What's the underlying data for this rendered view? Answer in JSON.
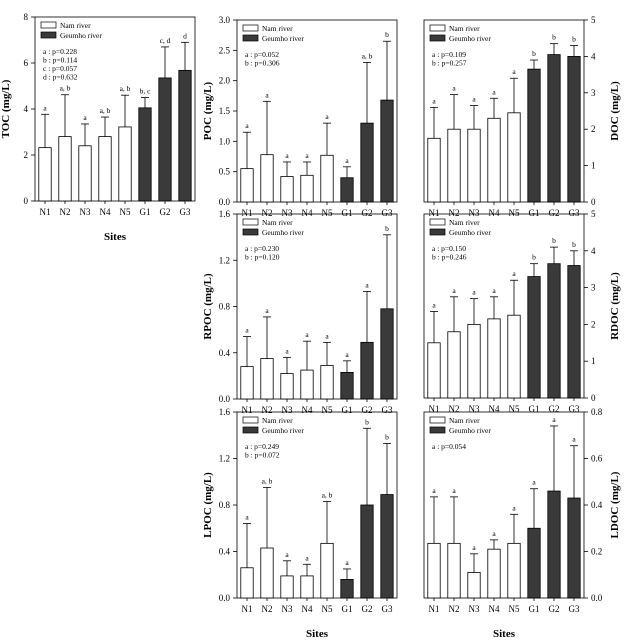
{
  "colors": {
    "nam": "#ffffff",
    "geumho": "#3a3a3a",
    "stroke": "#000000"
  },
  "chart_data": [
    {
      "id": "toc",
      "type": "bar",
      "ylabel": "TOC (mg/L)",
      "xlabel": "Sites",
      "axis_side": "left",
      "ylim": [
        0,
        8
      ],
      "yticks": [
        0,
        2,
        4,
        6,
        8
      ],
      "categories": [
        "N1",
        "N2",
        "N3",
        "N4",
        "N5",
        "G1",
        "G2",
        "G3"
      ],
      "legend": [
        "Nam river",
        "Geumho river"
      ],
      "series": [
        {
          "values": [
            2.32,
            2.8,
            2.4,
            2.8,
            3.22,
            4.05,
            5.35,
            5.68
          ],
          "errors": [
            1.45,
            1.82,
            0.95,
            0.85,
            1.38,
            0.45,
            1.35,
            1.22
          ]
        }
      ],
      "letters": [
        "a",
        "a, b",
        "a",
        "a, b",
        "a, b",
        "b, c",
        "c, d",
        "d"
      ],
      "stats": [
        "a : p=0.228",
        "b : p=0.114",
        "c : p=0.057",
        "d : p=0.632"
      ]
    },
    {
      "id": "poc",
      "type": "bar",
      "ylabel": "POC (mg/L)",
      "xlabel": "",
      "axis_side": "left",
      "ylim": [
        0,
        3.0
      ],
      "yticks": [
        "0.0",
        "0.5",
        "1.0",
        "1.5",
        "2.0",
        "2.5",
        "3.0"
      ],
      "categories": [
        "N1",
        "N2",
        "N3",
        "N4",
        "N5",
        "G1",
        "G2",
        "G3"
      ],
      "legend": [
        "Nam river",
        "Geumho river"
      ],
      "series": [
        {
          "values": [
            0.55,
            0.78,
            0.42,
            0.44,
            0.77,
            0.4,
            1.3,
            1.68
          ],
          "errors": [
            0.6,
            0.88,
            0.24,
            0.22,
            0.53,
            0.18,
            1.0,
            0.97
          ]
        }
      ],
      "letters": [
        "a",
        "a",
        "a",
        "a",
        "a",
        "a",
        "a, b",
        "b"
      ],
      "stats": [
        "a : p=0.052",
        "b : p=0.306"
      ]
    },
    {
      "id": "doc",
      "type": "bar",
      "ylabel": "DOC (mg/L)",
      "xlabel": "",
      "axis_side": "right",
      "ylim": [
        0,
        5
      ],
      "yticks": [
        0,
        1,
        2,
        3,
        4,
        5
      ],
      "categories": [
        "N1",
        "N2",
        "N3",
        "N4",
        "N5",
        "G1",
        "G2",
        "G3"
      ],
      "legend": [
        "Nam river",
        "Geumho river"
      ],
      "series": [
        {
          "values": [
            1.75,
            2.0,
            2.0,
            2.3,
            2.45,
            3.65,
            4.05,
            4.0
          ],
          "errors": [
            0.85,
            0.95,
            0.65,
            0.55,
            0.95,
            0.25,
            0.3,
            0.3
          ]
        }
      ],
      "letters": [
        "a",
        "a",
        "a",
        "a",
        "a",
        "b",
        "b",
        "b"
      ],
      "stats": [
        "a : p=0.109",
        "b : p=0.257"
      ]
    },
    {
      "id": "rpoc",
      "type": "bar",
      "ylabel": "RPOC (mg/L)",
      "xlabel": "",
      "axis_side": "left",
      "ylim": [
        0,
        1.6
      ],
      "yticks": [
        "0.0",
        "0.4",
        "0.8",
        "1.2",
        "1.6"
      ],
      "categories": [
        "N1",
        "N2",
        "N3",
        "N4",
        "N5",
        "G1",
        "G2",
        "G3"
      ],
      "legend": [
        "Nam river",
        "Geumho river"
      ],
      "series": [
        {
          "values": [
            0.28,
            0.35,
            0.22,
            0.25,
            0.29,
            0.23,
            0.49,
            0.78
          ],
          "errors": [
            0.26,
            0.36,
            0.14,
            0.25,
            0.2,
            0.1,
            0.44,
            0.64
          ]
        }
      ],
      "letters": [
        "a",
        "a",
        "a",
        "a",
        "a",
        "a",
        "a",
        "b"
      ],
      "stats": [
        "a : p=0.230",
        "b : p=0.120"
      ]
    },
    {
      "id": "rdoc",
      "type": "bar",
      "ylabel": "RDOC (mg/L)",
      "xlabel": "",
      "axis_side": "right",
      "ylim": [
        0,
        5
      ],
      "yticks": [
        0,
        1,
        2,
        3,
        4,
        5
      ],
      "categories": [
        "N1",
        "N2",
        "N3",
        "N4",
        "N5",
        "G1",
        "G2",
        "G3"
      ],
      "legend": [
        "Nam river",
        "Geumho river"
      ],
      "series": [
        {
          "values": [
            1.5,
            1.8,
            2.0,
            2.15,
            2.25,
            3.3,
            3.65,
            3.6
          ],
          "errors": [
            0.85,
            0.95,
            0.7,
            0.6,
            0.95,
            0.35,
            0.45,
            0.4
          ]
        }
      ],
      "letters": [
        "a",
        "a",
        "a",
        "a",
        "a",
        "b",
        "b",
        "b"
      ],
      "stats": [
        "a : p=0.150",
        "b : p=0.246"
      ]
    },
    {
      "id": "lpoc",
      "type": "bar",
      "ylabel": "LPOC (mg/L)",
      "xlabel": "Sites",
      "axis_side": "left",
      "ylim": [
        0,
        1.6
      ],
      "yticks": [
        "0.0",
        "0.4",
        "0.8",
        "1.2",
        "1.6"
      ],
      "categories": [
        "N1",
        "N2",
        "N3",
        "N4",
        "N5",
        "G1",
        "G2",
        "G3"
      ],
      "legend": [
        "Nam river",
        "Geumho river"
      ],
      "series": [
        {
          "values": [
            0.26,
            0.43,
            0.19,
            0.19,
            0.47,
            0.16,
            0.8,
            0.89
          ],
          "errors": [
            0.38,
            0.52,
            0.13,
            0.1,
            0.36,
            0.09,
            0.66,
            0.44
          ]
        }
      ],
      "letters": [
        "a",
        "a, b",
        "a",
        "a",
        "a, b",
        "a",
        "b",
        "b"
      ],
      "stats": [
        "a : p=0.249",
        "b : p=0.072"
      ]
    },
    {
      "id": "ldoc",
      "type": "bar",
      "ylabel": "LDOC (mg/L)",
      "xlabel": "Sites",
      "axis_side": "right",
      "ylim": [
        0,
        0.8
      ],
      "yticks": [
        "0.0",
        "0.2",
        "0.4",
        "0.6",
        "0.8"
      ],
      "categories": [
        "N1",
        "N2",
        "N3",
        "N4",
        "N5",
        "G1",
        "G2",
        "G3"
      ],
      "legend": [
        "Nam river",
        "Geumho river"
      ],
      "series": [
        {
          "values": [
            0.235,
            0.235,
            0.11,
            0.21,
            0.235,
            0.3,
            0.46,
            0.43
          ],
          "errors": [
            0.2,
            0.2,
            0.08,
            0.04,
            0.125,
            0.17,
            0.28,
            0.225
          ]
        }
      ],
      "letters": [
        "a",
        "a",
        "a",
        "a",
        "a",
        "a",
        "a",
        "a"
      ],
      "stats": [
        "a : p=0.054"
      ]
    }
  ]
}
